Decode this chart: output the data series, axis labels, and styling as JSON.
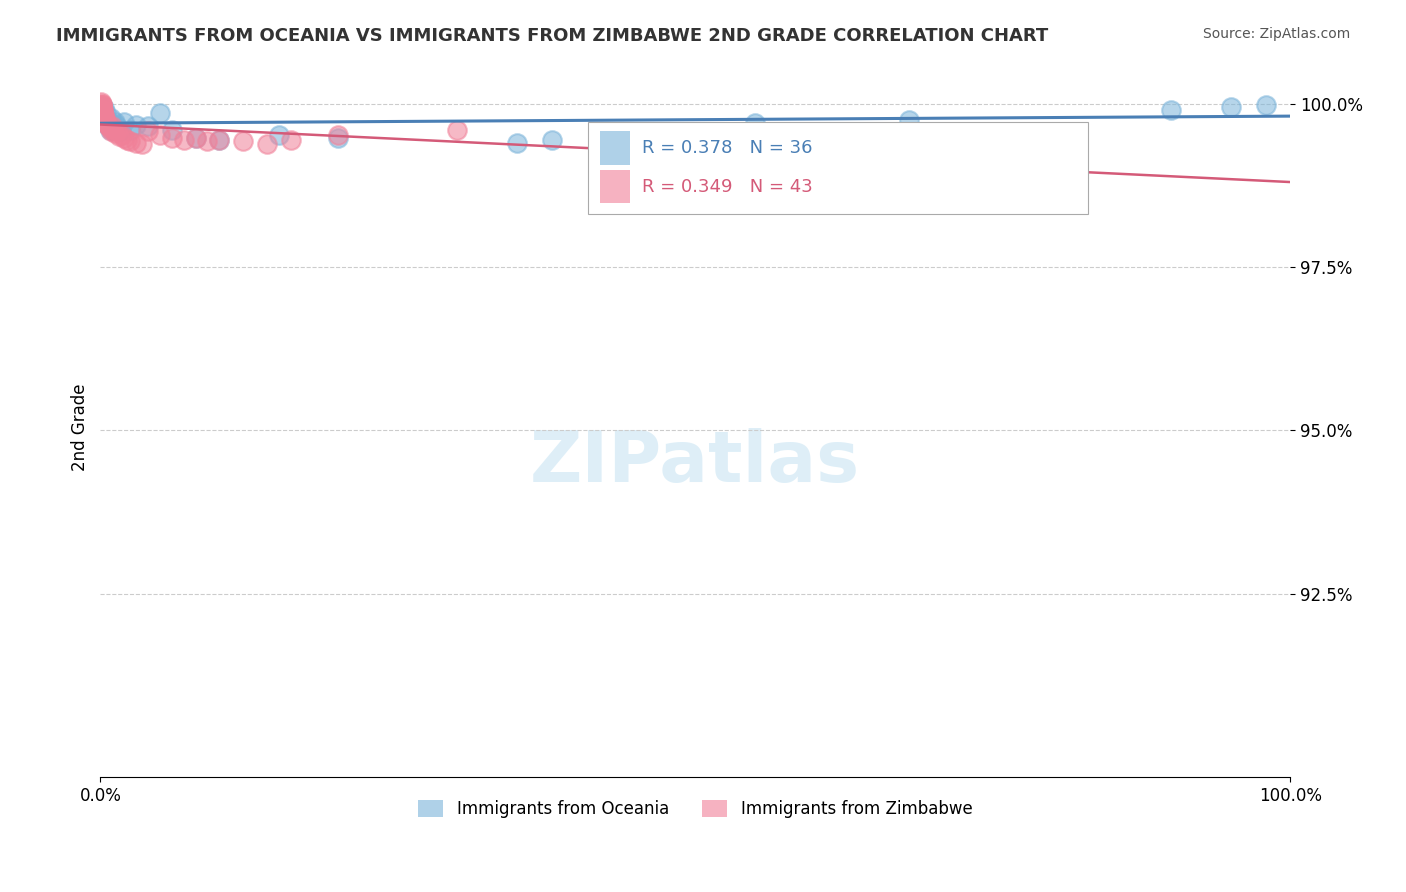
{
  "title": "IMMIGRANTS FROM OCEANIA VS IMMIGRANTS FROM ZIMBABWE 2ND GRADE CORRELATION CHART",
  "source": "Source: ZipAtlas.com",
  "xlabel": "",
  "ylabel": "2nd Grade",
  "xlim": [
    0.0,
    1.0
  ],
  "ylim": [
    0.895,
    1.005
  ],
  "yticks": [
    0.925,
    0.95,
    0.975,
    1.0
  ],
  "ytick_labels": [
    "92.5%",
    "95.0%",
    "97.5%",
    "100.0%"
  ],
  "xtick_labels": [
    "0.0%",
    "100.0%"
  ],
  "xticks": [
    0.0,
    1.0
  ],
  "legend_entries": [
    {
      "label": "R = 0.378   N = 36",
      "color": "#a8c8e8"
    },
    {
      "label": "R = 0.349   N = 43",
      "color": "#f4a8b8"
    }
  ],
  "legend_bottom": [
    "Immigrants from Oceania",
    "Immigrants from Zimbabwe"
  ],
  "watermark": "ZIPatlas",
  "blue_color": "#7ab3d9",
  "pink_color": "#f08098",
  "trend_blue": "#4a7fb5",
  "trend_pink": "#d45a78",
  "blue_scatter_x": [
    0.0012,
    0.0015,
    0.0018,
    0.002,
    0.0022,
    0.0025,
    0.003,
    0.0035,
    0.004,
    0.005,
    0.006,
    0.007,
    0.008,
    0.009,
    0.01,
    0.012,
    0.013,
    0.015,
    0.017,
    0.02,
    0.025,
    0.03,
    0.04,
    0.05,
    0.06,
    0.08,
    0.1,
    0.15,
    0.2,
    0.35,
    0.38,
    0.55,
    0.68,
    0.9,
    0.95,
    0.98
  ],
  "blue_scatter_y": [
    0.9995,
    0.9992,
    0.9985,
    0.9975,
    0.999,
    0.9988,
    0.9993,
    0.998,
    0.997,
    0.9985,
    0.9975,
    0.9972,
    0.996,
    0.9978,
    0.9965,
    0.9972,
    0.9968,
    0.9962,
    0.9958,
    0.9972,
    0.996,
    0.9968,
    0.9965,
    0.9985,
    0.996,
    0.9948,
    0.9945,
    0.9952,
    0.9948,
    0.994,
    0.9945,
    0.997,
    0.9975,
    0.999,
    0.9995,
    0.9998
  ],
  "pink_scatter_x": [
    0.0008,
    0.001,
    0.0012,
    0.0014,
    0.0016,
    0.0018,
    0.002,
    0.0022,
    0.0025,
    0.003,
    0.0032,
    0.0035,
    0.004,
    0.0045,
    0.005,
    0.006,
    0.007,
    0.008,
    0.009,
    0.01,
    0.011,
    0.012,
    0.014,
    0.016,
    0.018,
    0.02,
    0.022,
    0.025,
    0.03,
    0.035,
    0.04,
    0.05,
    0.06,
    0.07,
    0.08,
    0.09,
    0.1,
    0.12,
    0.14,
    0.16,
    0.2,
    0.3,
    0.5
  ],
  "pink_scatter_y": [
    1.0002,
    1.0,
    0.9998,
    0.9995,
    0.9998,
    0.9992,
    0.999,
    0.9988,
    0.9985,
    0.9982,
    0.998,
    0.9978,
    0.9975,
    0.9972,
    0.997,
    0.9968,
    0.9965,
    0.9962,
    0.9958,
    0.9965,
    0.996,
    0.9955,
    0.9958,
    0.995,
    0.9952,
    0.9948,
    0.9945,
    0.9942,
    0.994,
    0.9938,
    0.9958,
    0.9952,
    0.9948,
    0.9945,
    0.9948,
    0.9942,
    0.9945,
    0.9942,
    0.9938,
    0.9945,
    0.9952,
    0.996,
    0.9945
  ]
}
